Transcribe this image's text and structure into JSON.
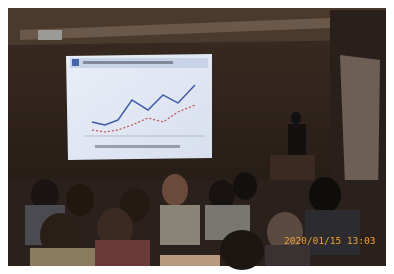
{
  "photo": {
    "timestamp": "2020/01/15 13:03"
  }
}
